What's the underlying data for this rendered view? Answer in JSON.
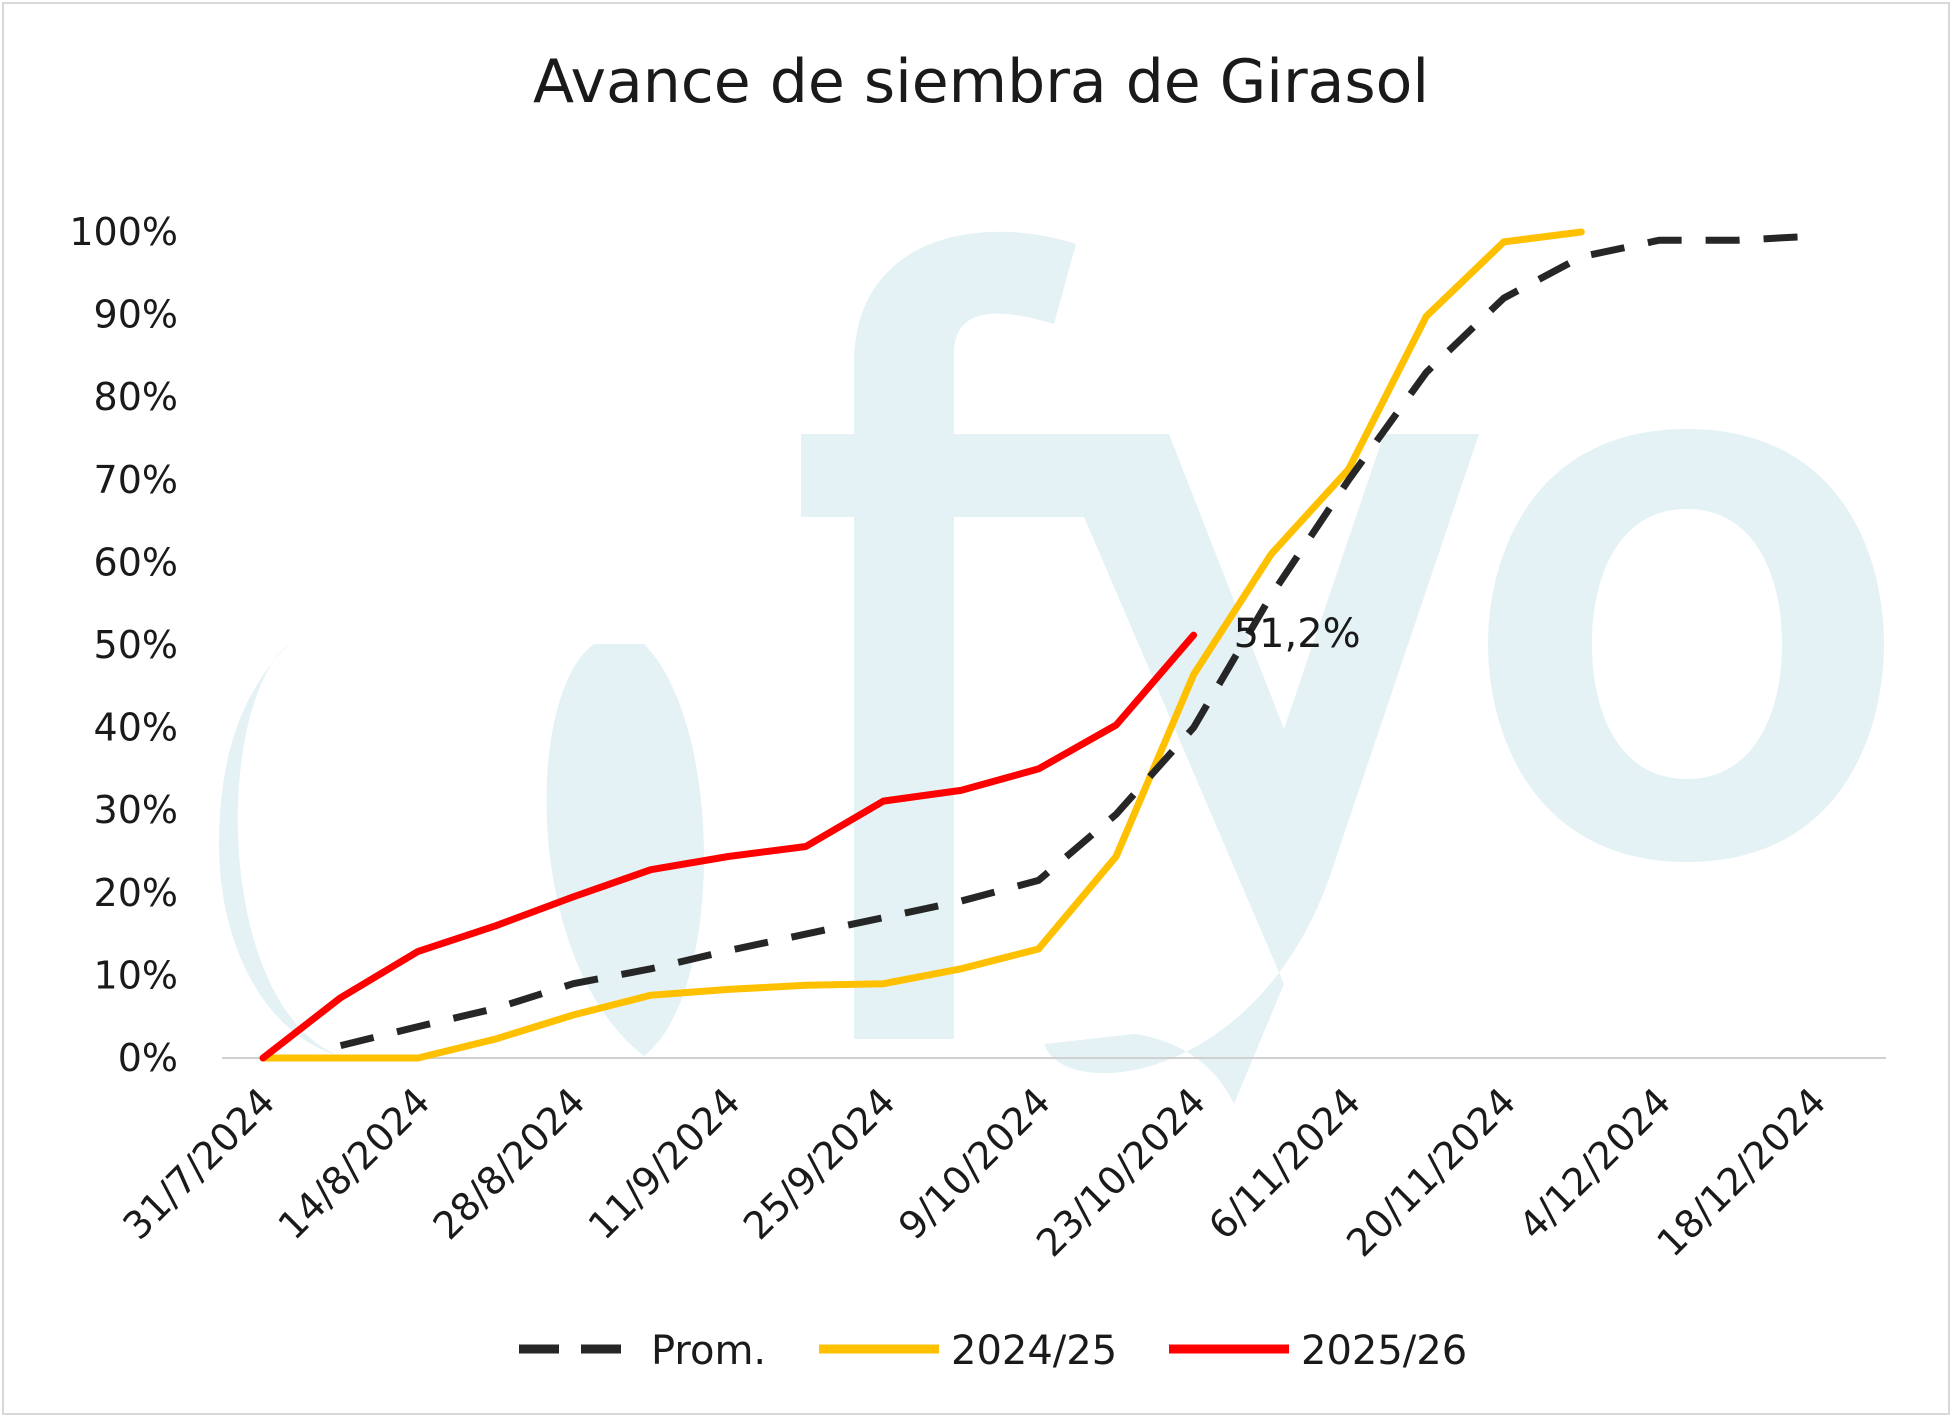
{
  "chart_data": {
    "type": "line",
    "title": "Avance de siembra de Girasol",
    "xlabel": "",
    "ylabel": "",
    "x_ticks": [
      "31/7/2024",
      "14/8/2024",
      "28/8/2024",
      "11/9/2024",
      "25/9/2024",
      "9/10/2024",
      "23/10/2024",
      "6/11/2024",
      "20/11/2024",
      "4/12/2024",
      "18/12/2024"
    ],
    "y_ticks": [
      "0%",
      "10%",
      "20%",
      "30%",
      "40%",
      "50%",
      "60%",
      "70%",
      "80%",
      "90%",
      "100%"
    ],
    "ylim": [
      0,
      100
    ],
    "xlim": [
      "2024-07-31",
      "2024-12-18"
    ],
    "grid": false,
    "legend_position": "bottom",
    "series": [
      {
        "name": "Prom.",
        "style": "dashed",
        "color": "#262626",
        "points": [
          [
            "2024-08-07",
            1.5
          ],
          [
            "2024-08-14",
            3.8
          ],
          [
            "2024-08-21",
            6
          ],
          [
            "2024-08-28",
            9
          ],
          [
            "2024-09-04",
            10.8
          ],
          [
            "2024-09-11",
            13
          ],
          [
            "2024-09-18",
            15
          ],
          [
            "2024-09-25",
            17
          ],
          [
            "2024-10-02",
            19
          ],
          [
            "2024-10-09",
            21.5
          ],
          [
            "2024-10-16",
            29.5
          ],
          [
            "2024-10-23",
            40
          ],
          [
            "2024-10-30",
            56
          ],
          [
            "2024-11-06",
            70
          ],
          [
            "2024-11-13",
            83
          ],
          [
            "2024-11-20",
            92
          ],
          [
            "2024-11-27",
            97
          ],
          [
            "2024-12-04",
            99
          ],
          [
            "2024-12-11",
            99
          ],
          [
            "2024-12-18",
            99.5
          ]
        ]
      },
      {
        "name": "2024/25",
        "style": "solid",
        "color": "#ffc000",
        "points": [
          [
            "2024-07-31",
            0
          ],
          [
            "2024-08-07",
            0
          ],
          [
            "2024-08-14",
            0
          ],
          [
            "2024-08-21",
            2.3
          ],
          [
            "2024-08-28",
            5.2
          ],
          [
            "2024-09-04",
            7.6
          ],
          [
            "2024-09-11",
            8.3
          ],
          [
            "2024-09-18",
            8.8
          ],
          [
            "2024-09-25",
            9
          ],
          [
            "2024-10-02",
            10.8
          ],
          [
            "2024-10-09",
            13.2
          ],
          [
            "2024-10-16",
            24.4
          ],
          [
            "2024-10-23",
            46.4
          ],
          [
            "2024-10-30",
            61
          ],
          [
            "2024-11-06",
            71.3
          ],
          [
            "2024-11-13",
            89.8
          ],
          [
            "2024-11-20",
            98.8
          ],
          [
            "2024-11-27",
            100
          ]
        ]
      },
      {
        "name": "2025/26",
        "style": "solid",
        "color": "#ff0000",
        "points": [
          [
            "2024-07-31",
            0
          ],
          [
            "2024-08-07",
            7.3
          ],
          [
            "2024-08-14",
            12.9
          ],
          [
            "2024-08-21",
            16
          ],
          [
            "2024-08-28",
            19.5
          ],
          [
            "2024-09-04",
            22.8
          ],
          [
            "2024-09-11",
            24.4
          ],
          [
            "2024-09-18",
            25.6
          ],
          [
            "2024-09-25",
            31.1
          ],
          [
            "2024-10-02",
            32.4
          ],
          [
            "2024-10-09",
            35
          ],
          [
            "2024-10-16",
            40.3
          ],
          [
            "2024-10-23",
            51.2
          ]
        ]
      }
    ],
    "annotations": [
      {
        "text": "51,2%",
        "series": "2025/26",
        "x": "2024-10-23",
        "y": 51.2
      }
    ],
    "watermark": "fyo"
  }
}
